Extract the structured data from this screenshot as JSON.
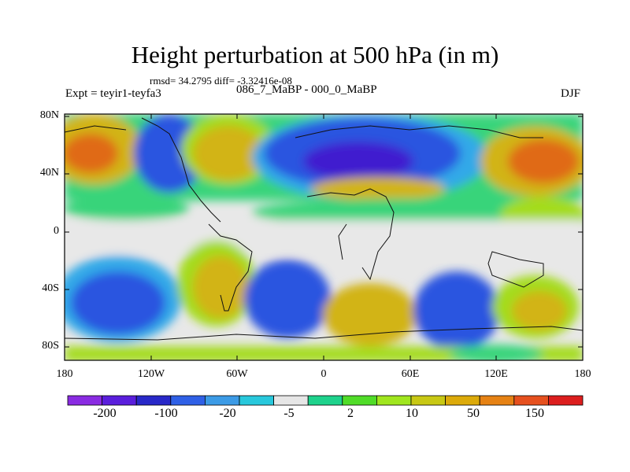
{
  "title": "Height perturbation at 500 hPa (in m)",
  "stats": "rmsd= 34.2795 diff= -3.32416e-08",
  "experiment": "Expt = teyir1-teyfa3",
  "runs": "086_7_MaBP - 000_0_MaBP",
  "season": "DJF",
  "lat_labels": [
    "80N",
    "40N",
    "0",
    "40S",
    "80S"
  ],
  "lon_labels": [
    "180",
    "120W",
    "60W",
    "0",
    "60E",
    "120E",
    "180"
  ],
  "colorbar": {
    "labels": [
      "-200",
      "-100",
      "-20",
      "-5",
      "2",
      "10",
      "50",
      "150"
    ],
    "colors": [
      "#8a2be2",
      "#5a1edc",
      "#2828c8",
      "#2f60e6",
      "#3c9be6",
      "#28c8dc",
      "#e6e6e6",
      "#1ed28c",
      "#50dc28",
      "#a0e61e",
      "#c8c814",
      "#dcaa0a",
      "#e68214",
      "#e6501e",
      "#dc1e1e"
    ]
  },
  "colors": {
    "strong_negative": "#3f1ecf",
    "negative": "#2a55e0",
    "weak_negative": "#33a9e8",
    "near_zero": "#e8e8e8",
    "weak_positive": "#38d47a",
    "positive": "#a4dc1e",
    "strong_positive": "#d2b414",
    "max_positive": "#e06a18"
  }
}
